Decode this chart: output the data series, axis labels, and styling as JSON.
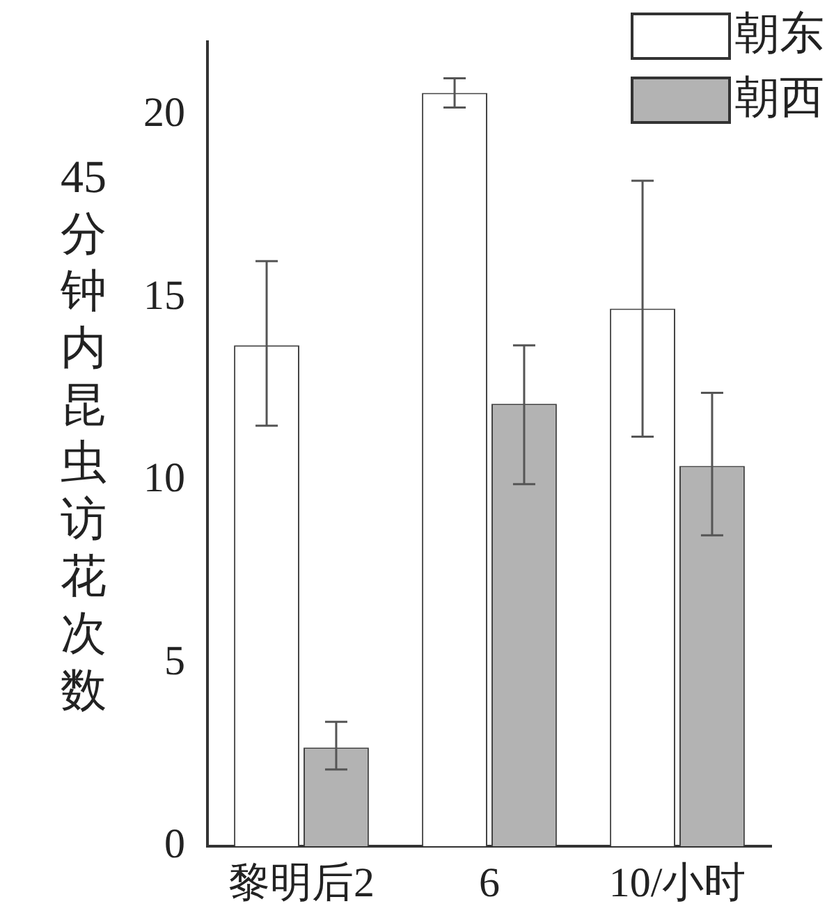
{
  "chart_data": {
    "type": "bar",
    "ylabel": "45分钟内昆虫访花次数",
    "categories": [
      "黎明后2",
      "6",
      "10/小时"
    ],
    "series": [
      {
        "name": "朝东",
        "color": "#ffffff",
        "values": [
          13.7,
          20.6,
          14.7
        ],
        "errors": [
          [
            11.5,
            16.0
          ],
          [
            20.2,
            21.0
          ],
          [
            11.2,
            18.2
          ]
        ]
      },
      {
        "name": "朝西",
        "color": "#b3b3b3",
        "values": [
          2.7,
          12.1,
          10.4
        ],
        "errors": [
          [
            2.1,
            3.4
          ],
          [
            9.9,
            13.7
          ],
          [
            8.5,
            12.4
          ]
        ]
      }
    ],
    "ylim": [
      0,
      22
    ],
    "yticks": [
      0,
      5,
      10,
      15,
      20
    ],
    "grid": false,
    "legend": "top right"
  }
}
